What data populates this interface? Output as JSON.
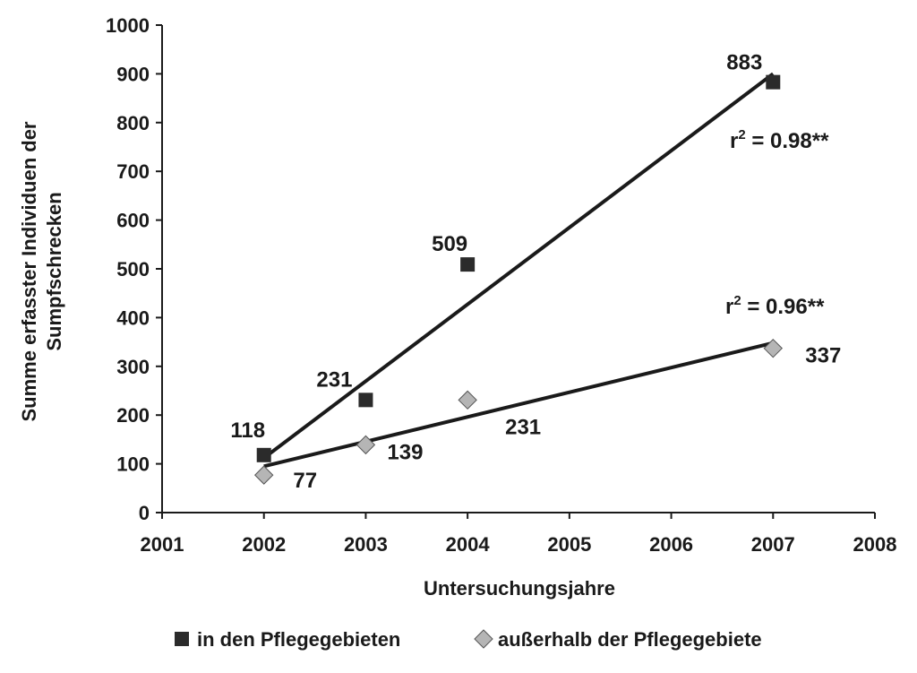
{
  "chart_data": {
    "type": "scatter",
    "xlabel": "Untersuchungsjahre",
    "ylabel_lines": [
      "Summe erfasster Individuen der",
      "Sumpfschrecken"
    ],
    "xlim": [
      2001,
      2008
    ],
    "ylim": [
      0,
      1000
    ],
    "x_ticks": [
      "2001",
      "2002",
      "2003",
      "2004",
      "2005",
      "2006",
      "2007",
      "2008"
    ],
    "y_ticks": [
      "0",
      "100",
      "200",
      "300",
      "400",
      "500",
      "600",
      "700",
      "800",
      "900",
      "1000"
    ],
    "grid": false,
    "legend_position": "bottom",
    "series": [
      {
        "name": "in den Pflegegebieten",
        "marker": "square",
        "color": "#2b2b2b",
        "x": [
          2002,
          2003,
          2004,
          2007
        ],
        "values": [
          118,
          231,
          509,
          883
        ],
        "labels": [
          "118",
          "231",
          "509",
          "883"
        ],
        "trend": {
          "x": [
            2002,
            2007
          ],
          "y": [
            112,
            900
          ]
        },
        "r2": {
          "prefix": "r",
          "sup": "2",
          "suffix": " = 0.98**"
        }
      },
      {
        "name": "außerhalb der Pflegegebiete",
        "marker": "diamond",
        "color": "#b5b5b5",
        "x": [
          2002,
          2003,
          2004,
          2007
        ],
        "values": [
          77,
          139,
          231,
          337
        ],
        "labels": [
          "77",
          "139",
          "231",
          "337"
        ],
        "trend": {
          "x": [
            2002,
            2007
          ],
          "y": [
            95,
            348
          ]
        },
        "r2": {
          "prefix": "r",
          "sup": "2",
          "suffix": " = 0.96**"
        }
      }
    ]
  }
}
